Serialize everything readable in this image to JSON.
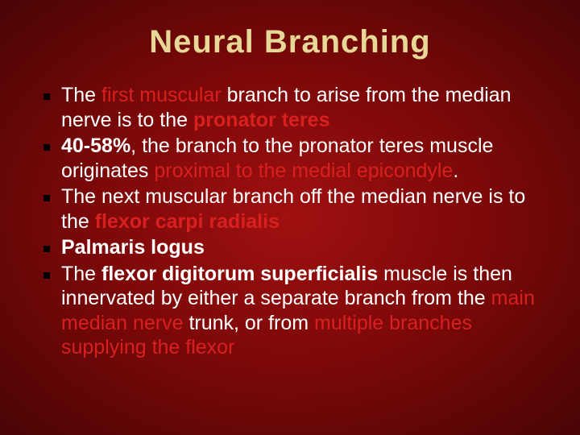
{
  "slide": {
    "title": "Neural Branching",
    "title_color": "#e8d898",
    "title_fontsize": 40,
    "body_fontsize": 25,
    "line_height": 1.22,
    "background_gradient": [
      "#a01010",
      "#7a0808",
      "#4a0505"
    ],
    "highlight_red": "#d82020",
    "bullet_color": "#000000",
    "bullets": [
      {
        "runs": [
          {
            "text": "The ",
            "style": "normal"
          },
          {
            "text": "first muscular ",
            "style": "red"
          },
          {
            "text": "branch to arise from the median nerve is to the ",
            "style": "normal"
          },
          {
            "text": "pronator teres",
            "style": "red-bold"
          }
        ]
      },
      {
        "runs": [
          {
            "text": "40-58%",
            "style": "bold"
          },
          {
            "text": ", the branch to the pronator teres muscle originates ",
            "style": "normal"
          },
          {
            "text": "proximal to the medial epicondyle",
            "style": "red"
          },
          {
            "text": ".",
            "style": "normal"
          }
        ]
      },
      {
        "runs": [
          {
            "text": "The next muscular branch off the median nerve is to the ",
            "style": "normal"
          },
          {
            "text": "flexor carpi radialis",
            "style": "red-bold"
          }
        ]
      },
      {
        "runs": [
          {
            "text": "Palmaris logus",
            "style": "bold"
          }
        ]
      },
      {
        "runs": [
          {
            "text": "The ",
            "style": "normal"
          },
          {
            "text": "flexor digitorum superficialis ",
            "style": "bold"
          },
          {
            "text": "muscle is then innervated by either a separate branch from the ",
            "style": "normal"
          },
          {
            "text": "main median nerve ",
            "style": "red"
          },
          {
            "text": "trunk, or from ",
            "style": "normal"
          },
          {
            "text": "multiple branches supplying the flexor",
            "style": "red"
          }
        ]
      }
    ]
  }
}
